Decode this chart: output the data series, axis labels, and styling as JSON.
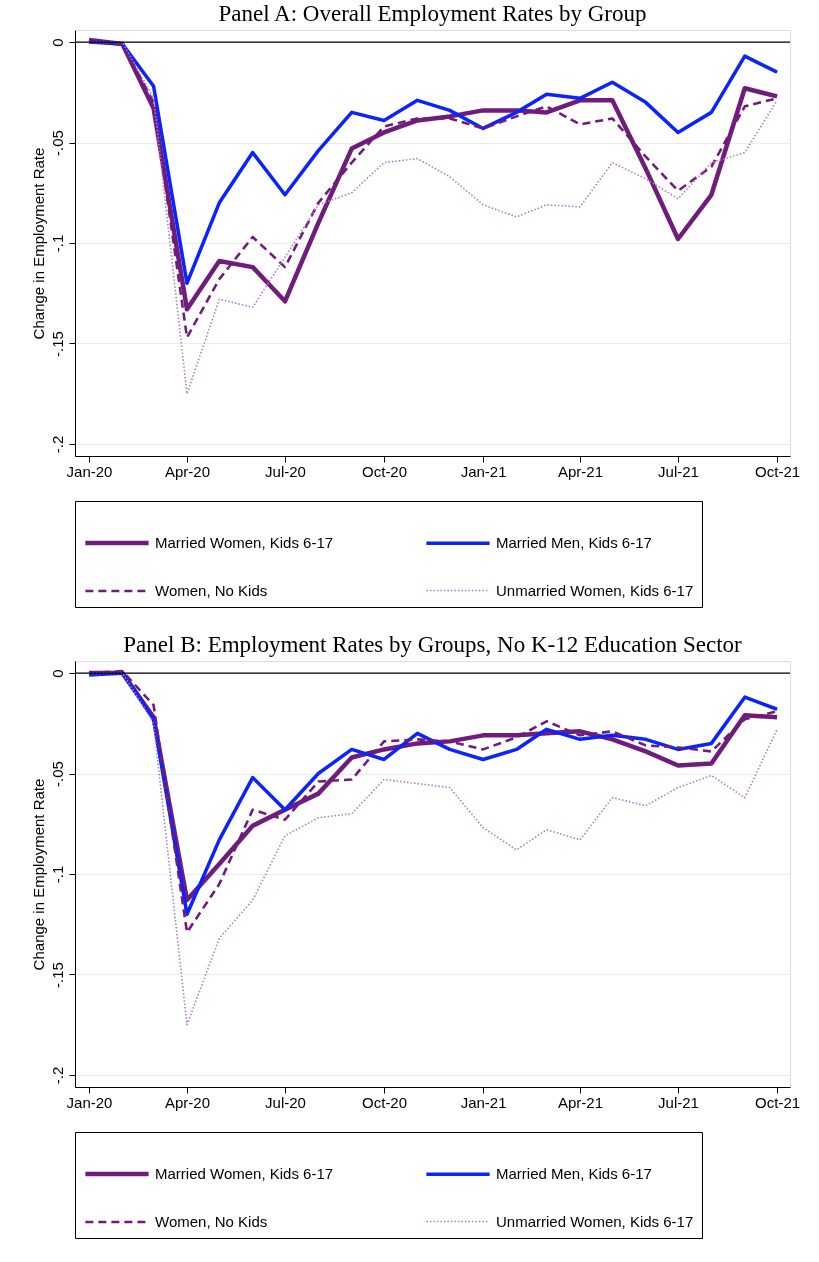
{
  "chart_data": [
    {
      "type": "line",
      "title": "Panel A: Overall Employment Rates by Group",
      "ylabel": "Change in Employment Rate",
      "x": [
        "2020-01",
        "2020-02",
        "2020-03",
        "2020-04",
        "2020-05",
        "2020-06",
        "2020-07",
        "2020-08",
        "2020-09",
        "2020-10",
        "2020-11",
        "2020-12",
        "2021-01",
        "2021-02",
        "2021-03",
        "2021-04",
        "2021-05",
        "2021-06",
        "2021-07",
        "2021-08",
        "2021-09",
        "2021-10"
      ],
      "series": [
        {
          "name": "Married Women, Kids 6-17",
          "color": "#701c7c",
          "line_style": "solid",
          "values": [
            0.001,
            -0.001,
            -0.033,
            -0.133,
            -0.109,
            -0.112,
            -0.129,
            -0.09,
            -0.053,
            -0.045,
            -0.039,
            -0.037,
            -0.034,
            -0.034,
            -0.035,
            -0.029,
            -0.029,
            -0.063,
            -0.098,
            -0.076,
            -0.023,
            -0.027
          ]
        },
        {
          "name": "Married Men, Kids 6-17",
          "color": "#0b24fb",
          "line_style": "solid",
          "values": [
            0.0,
            -0.001,
            -0.022,
            -0.12,
            -0.08,
            -0.055,
            -0.076,
            -0.054,
            -0.035,
            -0.039,
            -0.029,
            -0.034,
            -0.043,
            -0.035,
            -0.026,
            -0.028,
            -0.02,
            -0.03,
            -0.045,
            -0.035,
            -0.007,
            -0.015
          ]
        },
        {
          "name": "Women, No Kids",
          "color": "#701c7c",
          "line_style": "dashed",
          "values": [
            0.0,
            -0.001,
            -0.03,
            -0.147,
            -0.118,
            -0.097,
            -0.112,
            -0.08,
            -0.06,
            -0.042,
            -0.038,
            -0.038,
            -0.043,
            -0.037,
            -0.032,
            -0.041,
            -0.038,
            -0.057,
            -0.074,
            -0.062,
            -0.032,
            -0.028
          ]
        },
        {
          "name": "Unmarried Women, Kids 6-17",
          "color": "#b07cc0",
          "line_style": "dotted",
          "values": [
            0.0,
            0.0,
            -0.028,
            -0.175,
            -0.128,
            -0.132,
            -0.107,
            -0.081,
            -0.075,
            -0.06,
            -0.058,
            -0.067,
            -0.081,
            -0.087,
            -0.081,
            -0.082,
            -0.06,
            -0.068,
            -0.078,
            -0.06,
            -0.055,
            -0.029
          ]
        }
      ],
      "xlim": [
        "2019-12-19",
        "2021-10-13"
      ],
      "xticks": [
        {
          "value": "2020-01",
          "label": "Jan-20"
        },
        {
          "value": "2020-04",
          "label": "Apr-20"
        },
        {
          "value": "2020-07",
          "label": "Jul-20"
        },
        {
          "value": "2020-10",
          "label": "Oct-20"
        },
        {
          "value": "2021-01",
          "label": "Jan-21"
        },
        {
          "value": "2021-04",
          "label": "Apr-21"
        },
        {
          "value": "2021-07",
          "label": "Jul-21"
        },
        {
          "value": "2021-10",
          "label": "Oct-21"
        }
      ],
      "ylim": [
        -0.206,
        0.006
      ],
      "yticks": [
        {
          "value": 0,
          "label": "0"
        },
        {
          "value": -0.05,
          "label": "-.05"
        },
        {
          "value": -0.1,
          "label": "-.1"
        },
        {
          "value": -0.15,
          "label": "-.15"
        },
        {
          "value": -0.2,
          "label": "-.2"
        }
      ],
      "ref_lines": [
        {
          "axis": "y",
          "value": 0,
          "color": "#000000"
        }
      ],
      "grid": "y",
      "legend": "bottom"
    },
    {
      "type": "line",
      "title": "Panel B: Employment Rates by Groups, No K-12 Education Sector",
      "ylabel": "Change in Employment Rate",
      "x": [
        "2020-01",
        "2020-02",
        "2020-03",
        "2020-04",
        "2020-05",
        "2020-06",
        "2020-07",
        "2020-08",
        "2020-09",
        "2020-10",
        "2020-11",
        "2020-12",
        "2021-01",
        "2021-02",
        "2021-03",
        "2021-04",
        "2021-05",
        "2021-06",
        "2021-07",
        "2021-08",
        "2021-09",
        "2021-10"
      ],
      "series": [
        {
          "name": "Married Women, Kids 6-17",
          "color": "#701c7c",
          "line_style": "solid",
          "values": [
            0.0,
            0.0,
            -0.022,
            -0.113,
            -0.095,
            -0.076,
            -0.068,
            -0.06,
            -0.042,
            -0.038,
            -0.035,
            -0.034,
            -0.031,
            -0.031,
            -0.03,
            -0.029,
            -0.033,
            -0.039,
            -0.046,
            -0.045,
            -0.021,
            -0.022
          ]
        },
        {
          "name": "Married Men, Kids 6-17",
          "color": "#0b24fb",
          "line_style": "solid",
          "values": [
            -0.001,
            0.0,
            -0.023,
            -0.12,
            -0.083,
            -0.052,
            -0.068,
            -0.05,
            -0.038,
            -0.043,
            -0.03,
            -0.038,
            -0.043,
            -0.038,
            -0.028,
            -0.033,
            -0.031,
            -0.033,
            -0.038,
            -0.035,
            -0.012,
            -0.018
          ]
        },
        {
          "name": "Women, No Kids",
          "color": "#701c7c",
          "line_style": "dashed",
          "values": [
            0.0,
            0.001,
            -0.016,
            -0.129,
            -0.105,
            -0.068,
            -0.073,
            -0.054,
            -0.053,
            -0.034,
            -0.033,
            -0.034,
            -0.038,
            -0.032,
            -0.024,
            -0.031,
            -0.029,
            -0.036,
            -0.037,
            -0.039,
            -0.023,
            -0.019
          ]
        },
        {
          "name": "Unmarried Women, Kids 6-17",
          "color": "#b07cc0",
          "line_style": "dotted",
          "values": [
            0.0,
            0.0,
            -0.025,
            -0.175,
            -0.132,
            -0.113,
            -0.081,
            -0.072,
            -0.07,
            -0.053,
            -0.055,
            -0.057,
            -0.077,
            -0.088,
            -0.078,
            -0.083,
            -0.062,
            -0.066,
            -0.057,
            -0.051,
            -0.062,
            -0.028
          ]
        }
      ],
      "xlim": [
        "2019-12-19",
        "2021-10-13"
      ],
      "xticks": [
        {
          "value": "2020-01",
          "label": "Jan-20"
        },
        {
          "value": "2020-04",
          "label": "Apr-20"
        },
        {
          "value": "2020-07",
          "label": "Jul-20"
        },
        {
          "value": "2020-10",
          "label": "Oct-20"
        },
        {
          "value": "2021-01",
          "label": "Jan-21"
        },
        {
          "value": "2021-04",
          "label": "Apr-21"
        },
        {
          "value": "2021-07",
          "label": "Jul-21"
        },
        {
          "value": "2021-10",
          "label": "Oct-21"
        }
      ],
      "ylim": [
        -0.206,
        0.006
      ],
      "yticks": [
        {
          "value": 0,
          "label": "0"
        },
        {
          "value": -0.05,
          "label": "-.05"
        },
        {
          "value": -0.1,
          "label": "-.1"
        },
        {
          "value": -0.15,
          "label": "-.15"
        },
        {
          "value": -0.2,
          "label": "-.2"
        }
      ],
      "ref_lines": [
        {
          "axis": "y",
          "value": 0,
          "color": "#000000"
        }
      ],
      "grid": "y",
      "legend": "bottom"
    }
  ]
}
